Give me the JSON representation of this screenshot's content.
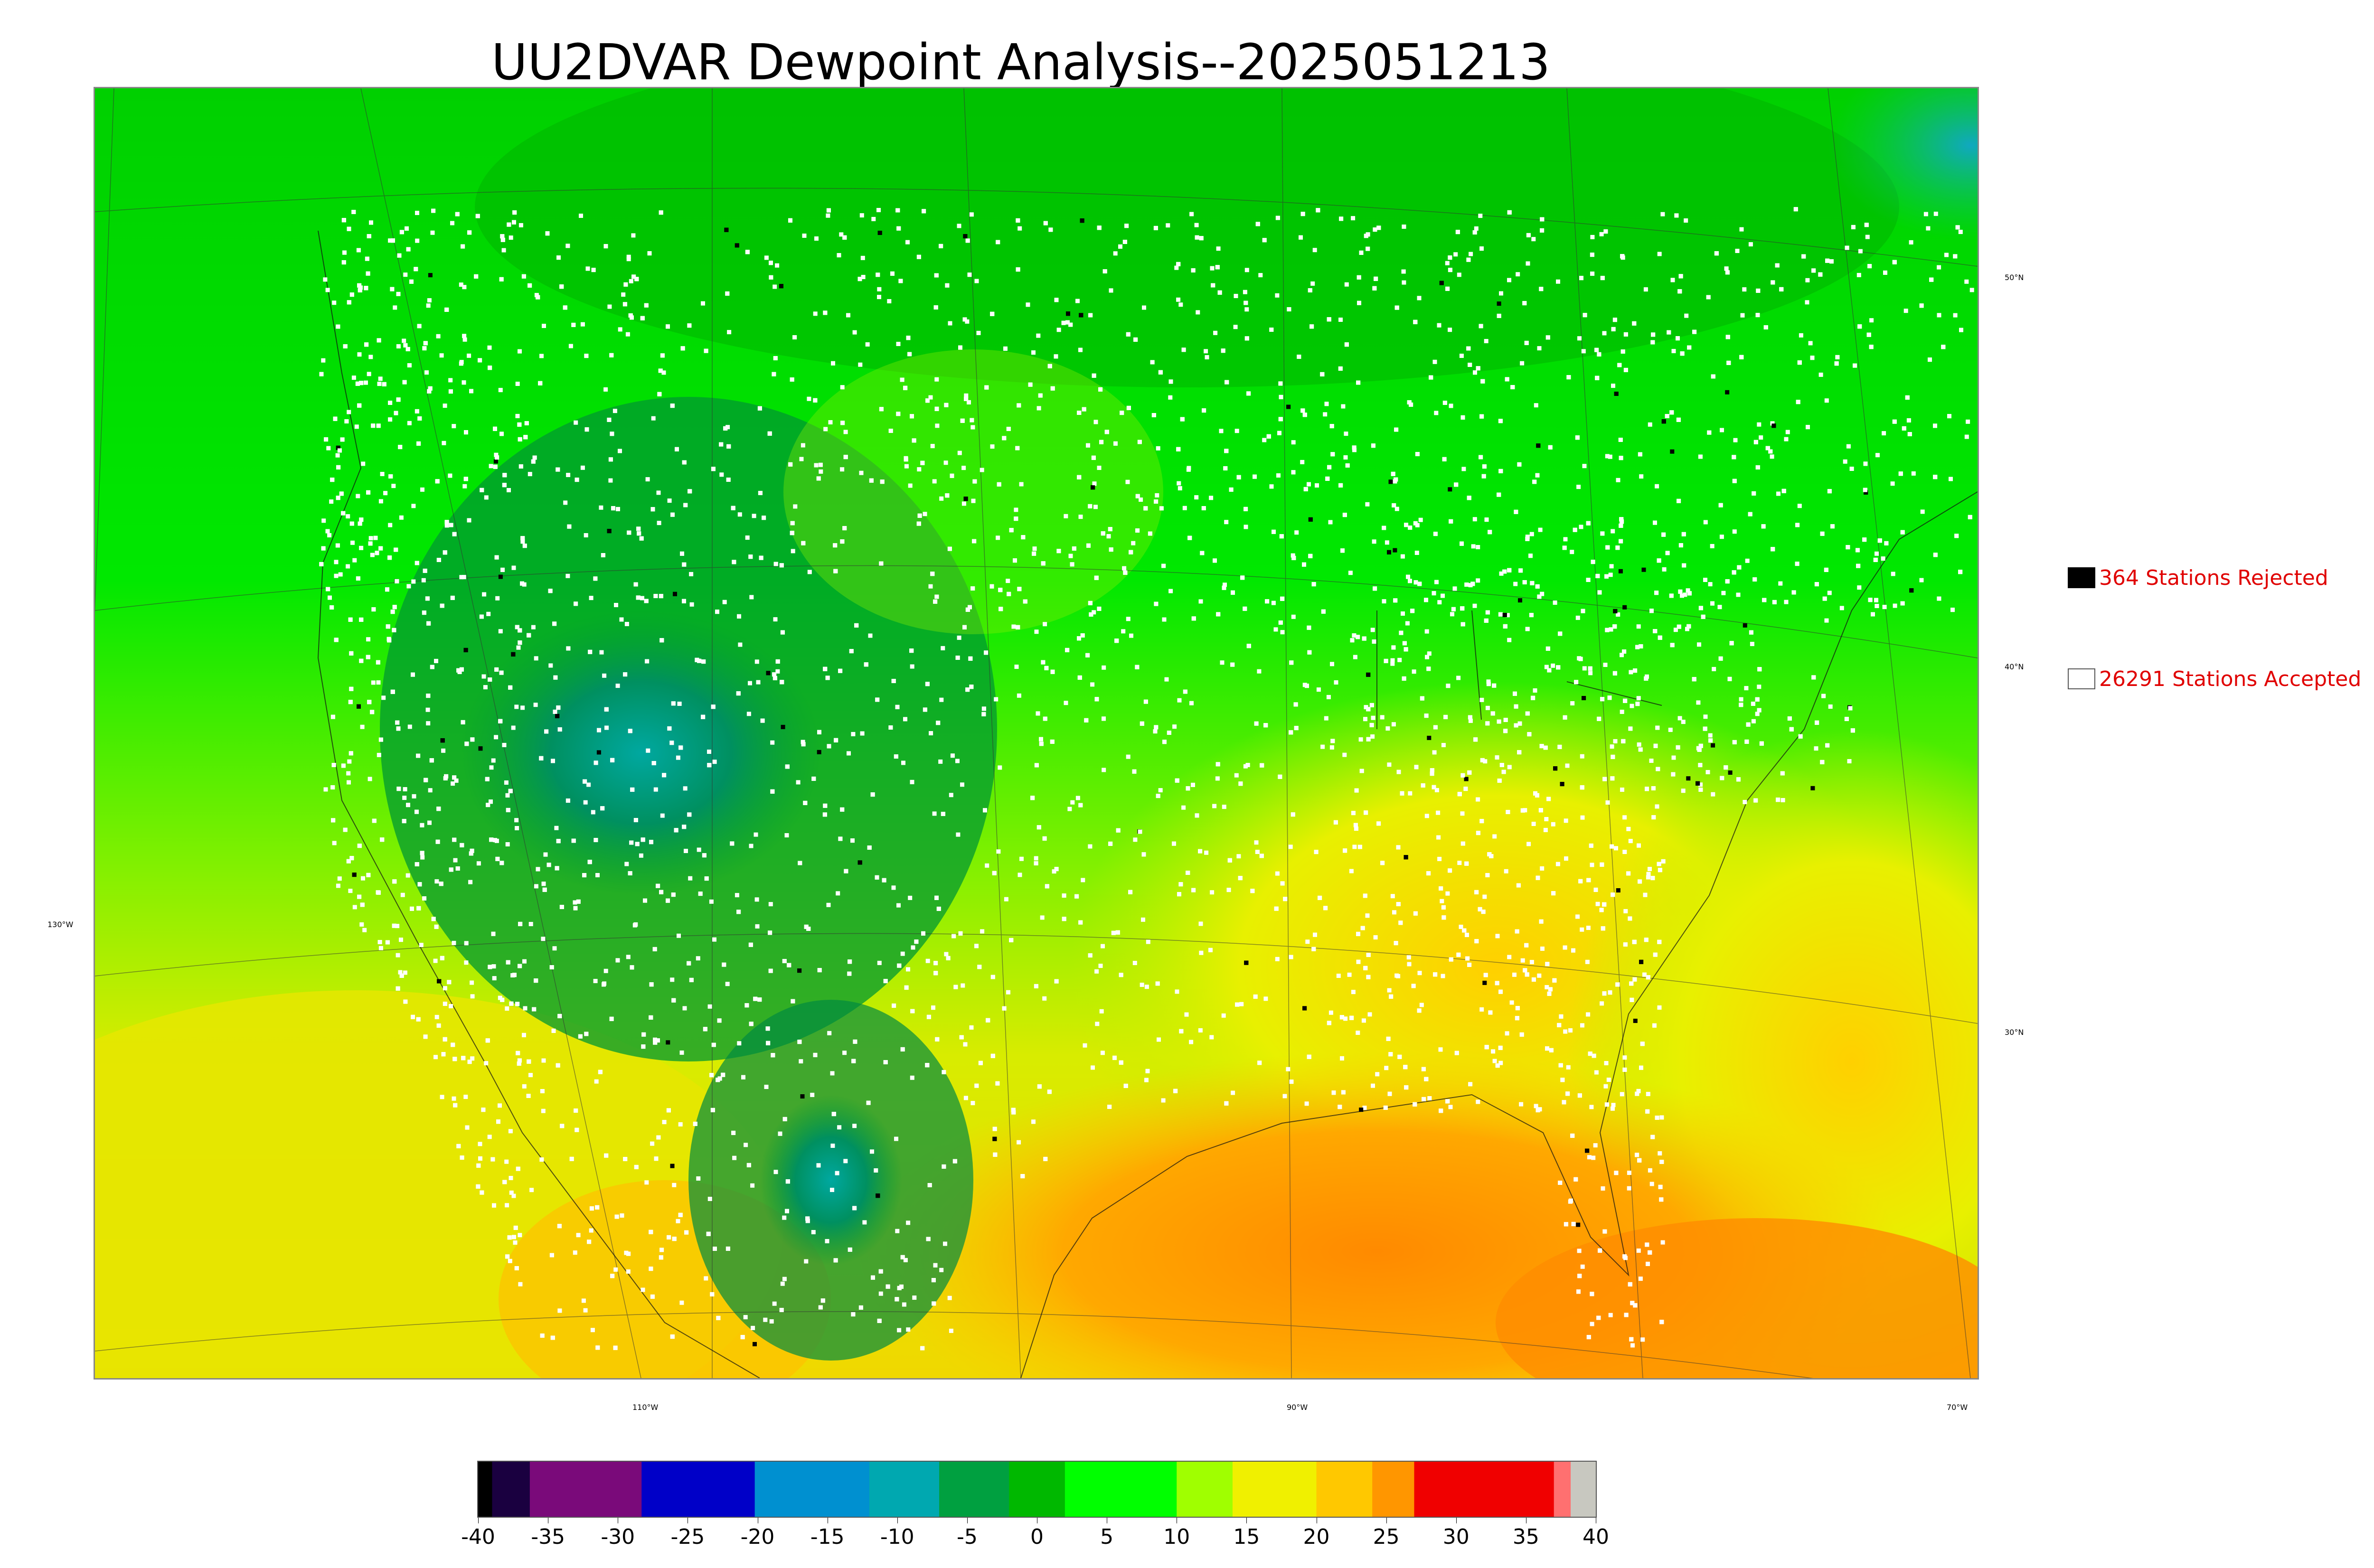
{
  "title": "UU2DVAR Dewpoint Analysis--2025051213",
  "legend": {
    "rejected": {
      "label": "364 Stations Rejected",
      "box_color": "#000000"
    },
    "accepted": {
      "label": "26291 Stations Accepted",
      "box_color": "#ffffff"
    },
    "text_color": "#e00000"
  },
  "lat_labels": {
    "n50": "50°N",
    "n40": "40°N",
    "n30": "30°N"
  },
  "lon_labels": {
    "w130": "130°W",
    "w110": "110°W",
    "w90": "90°W",
    "w70": "70°W"
  },
  "colorbar": {
    "min": -40,
    "max": 40,
    "ticks": [
      "-40",
      "-35",
      "-30",
      "-25",
      "-20",
      "-15",
      "-10",
      "-5",
      "0",
      "5",
      "10",
      "15",
      "20",
      "25",
      "30",
      "35",
      "40"
    ],
    "segments": [
      {
        "from": -40,
        "to": -39,
        "color": "#000000"
      },
      {
        "from": -39,
        "to": -36.3,
        "color": "#1a0040"
      },
      {
        "from": -36.3,
        "to": -28.3,
        "color": "#7a0a7a"
      },
      {
        "from": -28.3,
        "to": -20.2,
        "color": "#0000c8"
      },
      {
        "from": -20.2,
        "to": -12,
        "color": "#0090d0"
      },
      {
        "from": -12,
        "to": -7,
        "color": "#00a8b0"
      },
      {
        "from": -7,
        "to": -2,
        "color": "#00a040"
      },
      {
        "from": -2,
        "to": 2,
        "color": "#00b800"
      },
      {
        "from": 2,
        "to": 10,
        "color": "#00ff00"
      },
      {
        "from": 10,
        "to": 14,
        "color": "#a0ff00"
      },
      {
        "from": 14,
        "to": 20,
        "color": "#f0f000"
      },
      {
        "from": 20,
        "to": 24,
        "color": "#ffc800"
      },
      {
        "from": 24,
        "to": 27,
        "color": "#ff9600"
      },
      {
        "from": 27,
        "to": 37,
        "color": "#f00000"
      },
      {
        "from": 37,
        "to": 38.2,
        "color": "#ff7070"
      },
      {
        "from": 38.2,
        "to": 40,
        "color": "#c8c8c0"
      }
    ]
  },
  "colors": {
    "ocean_south": "#e8e800",
    "land_dry": "#009a1a",
    "land_moist": "#00e000",
    "gulf": "#ffa000",
    "station_accepted": "#ffffff",
    "station_rejected": "#000000"
  }
}
